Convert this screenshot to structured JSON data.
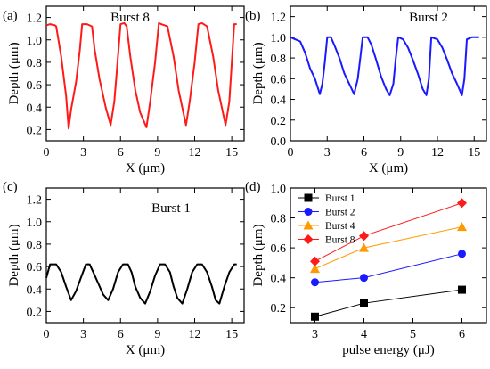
{
  "chart_data": [
    {
      "panel_label": "(a)",
      "type": "line",
      "title": "Burst 8",
      "xlabel": "X (μm)",
      "ylabel": "Depth (μm)",
      "xlim": [
        0,
        16
      ],
      "ylim": [
        0.1,
        1.3
      ],
      "xticks": [
        0,
        3,
        6,
        9,
        12,
        15
      ],
      "yticks": [
        0.2,
        0.4,
        0.6,
        0.8,
        1.0,
        1.2
      ],
      "ytick_labels": [
        "0.2",
        "0.4",
        "0.6",
        "0.8",
        "1.0",
        "1.2"
      ],
      "grid": false,
      "color": "#ff1a1a",
      "series": [
        {
          "x": [
            0.0,
            0.3,
            0.7,
            0.8,
            1.2,
            1.6,
            1.8,
            2.0,
            2.4,
            2.7,
            2.9,
            3.3,
            3.7,
            3.9,
            4.3,
            4.8,
            5.2,
            5.5,
            5.7,
            6.0,
            6.3,
            6.5,
            6.8,
            7.2,
            7.6,
            8.1,
            8.4,
            8.8,
            9.1,
            9.3,
            9.8,
            10.3,
            10.7,
            11.3,
            11.6,
            12.0,
            12.3,
            12.6,
            13.0,
            13.5,
            13.9,
            14.5,
            14.8,
            15.2,
            15.4
          ],
          "y": [
            1.13,
            1.14,
            1.13,
            1.12,
            0.85,
            0.5,
            0.21,
            0.38,
            0.62,
            0.9,
            1.14,
            1.14,
            1.12,
            0.92,
            0.65,
            0.4,
            0.24,
            0.45,
            0.72,
            1.14,
            1.15,
            1.12,
            0.85,
            0.55,
            0.35,
            0.22,
            0.45,
            0.8,
            1.15,
            1.14,
            1.12,
            0.85,
            0.55,
            0.24,
            0.45,
            0.8,
            1.14,
            1.15,
            1.12,
            0.85,
            0.55,
            0.24,
            0.45,
            1.14,
            1.14
          ]
        }
      ]
    },
    {
      "panel_label": "(b)",
      "type": "line",
      "title": "Burst 2",
      "xlabel": "X (μm)",
      "ylabel": "Depth (μm)",
      "xlim": [
        0,
        16
      ],
      "ylim": [
        0,
        1.3
      ],
      "xticks": [
        0,
        3,
        6,
        9,
        12,
        15
      ],
      "yticks": [
        0.0,
        0.2,
        0.4,
        0.6,
        0.8,
        1.0,
        1.2
      ],
      "ytick_labels": [
        "0.0",
        "0.2",
        "0.4",
        "0.6",
        "0.8",
        "1.0",
        "1.2"
      ],
      "grid": false,
      "color": "#1a1aff",
      "series": [
        {
          "x": [
            0.0,
            0.4,
            0.8,
            1.2,
            1.6,
            2.0,
            2.4,
            2.6,
            2.8,
            3.0,
            3.3,
            3.6,
            4.0,
            4.4,
            4.8,
            5.2,
            5.5,
            5.7,
            5.9,
            6.3,
            6.6,
            7.0,
            7.4,
            7.8,
            8.1,
            8.4,
            8.6,
            8.8,
            9.2,
            9.6,
            10.0,
            10.4,
            10.8,
            11.1,
            11.3,
            11.5,
            12.0,
            12.4,
            12.8,
            13.2,
            13.6,
            14.0,
            14.2,
            14.4,
            14.8,
            15.2,
            15.4
          ],
          "y": [
            1.0,
            0.98,
            0.96,
            0.85,
            0.7,
            0.6,
            0.45,
            0.55,
            0.75,
            1.0,
            1.0,
            0.92,
            0.8,
            0.65,
            0.55,
            0.45,
            0.6,
            0.8,
            1.0,
            1.0,
            0.93,
            0.78,
            0.62,
            0.5,
            0.44,
            0.55,
            0.8,
            1.0,
            0.98,
            0.9,
            0.78,
            0.65,
            0.5,
            0.44,
            0.6,
            1.0,
            0.98,
            0.9,
            0.78,
            0.65,
            0.55,
            0.44,
            0.6,
            0.98,
            1.0,
            1.0,
            1.0
          ]
        }
      ]
    },
    {
      "panel_label": "(c)",
      "type": "line",
      "title": "Burst 1",
      "xlabel": "X (μm)",
      "ylabel": "Depth (μm)",
      "xlim": [
        0,
        16
      ],
      "ylim": [
        0.1,
        1.3
      ],
      "xticks": [
        0,
        3,
        6,
        9,
        12,
        15
      ],
      "yticks": [
        0.2,
        0.4,
        0.6,
        0.8,
        1.0,
        1.2
      ],
      "ytick_labels": [
        "0.2",
        "0.4",
        "0.6",
        "0.8",
        "1.0",
        "1.2"
      ],
      "grid": false,
      "color": "#000000",
      "series": [
        {
          "x": [
            0.0,
            0.3,
            0.6,
            0.8,
            1.2,
            1.6,
            2.0,
            2.4,
            2.8,
            3.2,
            3.5,
            3.8,
            4.2,
            4.6,
            5.0,
            5.4,
            5.8,
            6.2,
            6.6,
            6.9,
            7.2,
            7.6,
            8.0,
            8.4,
            8.8,
            9.2,
            9.6,
            10.0,
            10.3,
            10.6,
            11.0,
            11.4,
            11.8,
            12.2,
            12.6,
            13.0,
            13.4,
            13.7,
            14.0,
            14.4,
            14.8,
            15.2,
            15.4
          ],
          "y": [
            0.5,
            0.62,
            0.62,
            0.62,
            0.55,
            0.42,
            0.3,
            0.38,
            0.5,
            0.62,
            0.62,
            0.55,
            0.45,
            0.35,
            0.3,
            0.4,
            0.55,
            0.62,
            0.62,
            0.55,
            0.42,
            0.32,
            0.27,
            0.38,
            0.52,
            0.62,
            0.62,
            0.55,
            0.42,
            0.32,
            0.27,
            0.4,
            0.55,
            0.62,
            0.62,
            0.55,
            0.42,
            0.3,
            0.27,
            0.42,
            0.55,
            0.62,
            0.62
          ]
        }
      ]
    },
    {
      "panel_label": "(d)",
      "type": "line",
      "title": "",
      "xlabel": "pulse energy (μJ)",
      "ylabel": "Depth (μm)",
      "xlim": [
        2.5,
        6.5
      ],
      "ylim": [
        0.1,
        1.0
      ],
      "xticks": [
        3,
        4,
        5,
        6
      ],
      "yticks": [
        0.2,
        0.4,
        0.6,
        0.8,
        1.0
      ],
      "ytick_labels": [
        "0.2",
        "0.4",
        "0.6",
        "0.8",
        "1.0"
      ],
      "grid": false,
      "legend_position": "top-left",
      "categories": [
        3,
        4,
        6
      ],
      "series": [
        {
          "name": "Burst 1",
          "color": "#000000",
          "marker": "square",
          "values": [
            0.14,
            0.23,
            0.32
          ]
        },
        {
          "name": "Burst 2",
          "color": "#1a1aff",
          "marker": "circle",
          "values": [
            0.37,
            0.4,
            0.56
          ]
        },
        {
          "name": "Burst 4",
          "color": "#ff9900",
          "marker": "triangle",
          "values": [
            0.46,
            0.6,
            0.74
          ]
        },
        {
          "name": "Burst 8",
          "color": "#ff1a1a",
          "marker": "diamond",
          "values": [
            0.51,
            0.68,
            0.9
          ]
        }
      ]
    }
  ]
}
